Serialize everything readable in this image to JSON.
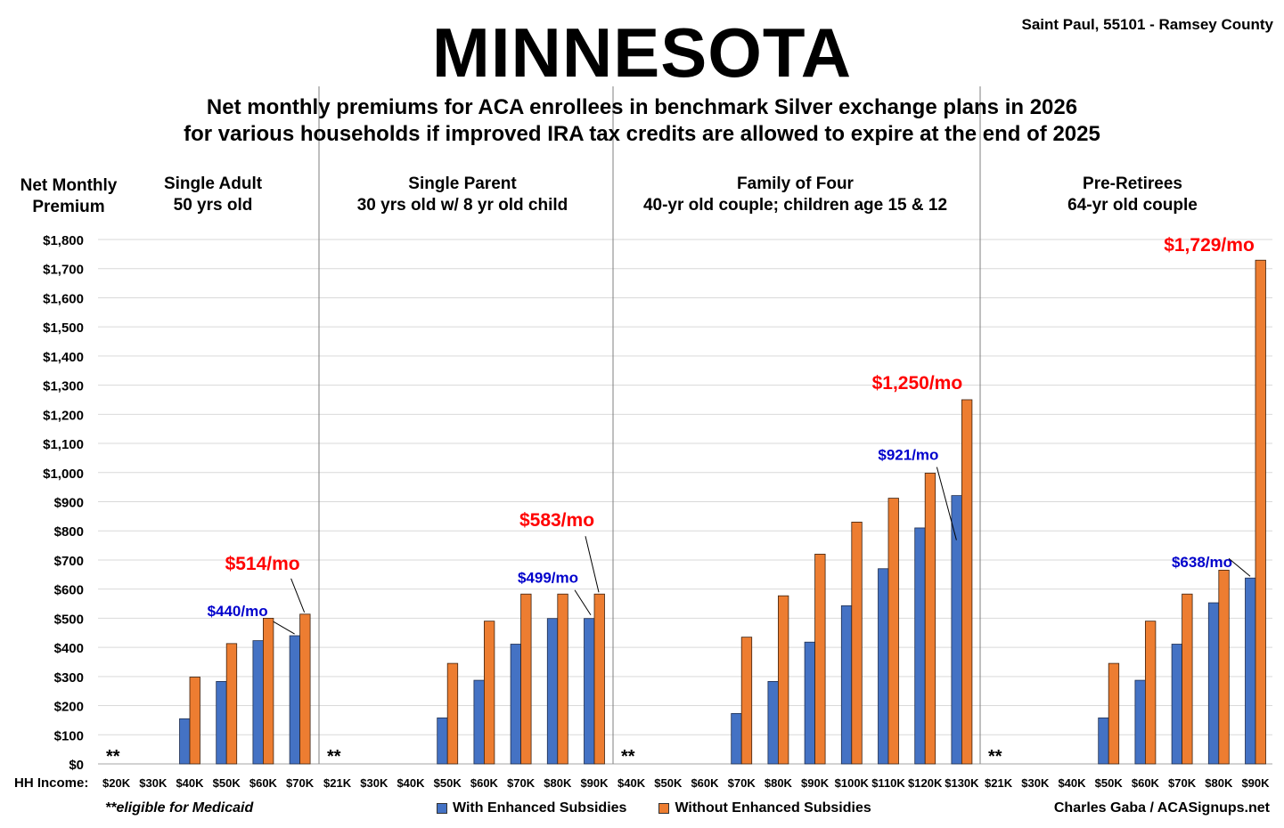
{
  "title": "MINNESOTA",
  "location": "Saint Paul, 55101 - Ramsey County",
  "subtitle_lines": [
    "Net monthly premiums for ACA enrollees in benchmark Silver exchange plans in 2026",
    "for various households if improved IRA tax credits are allowed to expire at the end of 2025"
  ],
  "ylabel_lines": [
    "Net Monthly",
    "Premium"
  ],
  "xaxis_label": "HH Income:",
  "footnote": "**eligible for Medicaid",
  "credit": "Charles Gaba / ACASignups.net",
  "colors": {
    "with": "#4472C4",
    "without": "#ED7D31",
    "blue_label": "#0000CC",
    "red_label": "#FF0000"
  },
  "chart_data": {
    "type": "bar",
    "ylim": [
      0,
      1800
    ],
    "yticks": [
      "$0",
      "$100",
      "$200",
      "$300",
      "$400",
      "$500",
      "$600",
      "$700",
      "$800",
      "$900",
      "$1,000",
      "$1,100",
      "$1,200",
      "$1,300",
      "$1,400",
      "$1,500",
      "$1,600",
      "$1,700",
      "$1,800"
    ],
    "legend": [
      "With Enhanced Subsidies",
      "Without Enhanced Subsidies"
    ],
    "legend_position": "bottom",
    "medicaid_marker": "**",
    "groups": [
      {
        "title": [
          "Single Adult",
          "50 yrs old"
        ],
        "categories": [
          "$20K",
          "$30K",
          "$40K",
          "$50K",
          "$60K",
          "$70K"
        ],
        "with": [
          null,
          null,
          155,
          283,
          423,
          440
        ],
        "without": [
          null,
          null,
          298,
          413,
          500,
          514
        ],
        "label_with": "$440/mo",
        "label_without": "$514/mo"
      },
      {
        "title": [
          "Single Parent",
          "30 yrs old w/ 8 yr old child"
        ],
        "categories": [
          "$21K",
          "$30K",
          "$40K",
          "$50K",
          "$60K",
          "$70K",
          "$80K",
          "$90K"
        ],
        "with": [
          null,
          null,
          null,
          158,
          287,
          411,
          499,
          499
        ],
        "without": [
          null,
          null,
          null,
          345,
          490,
          583,
          583,
          583
        ],
        "label_with": "$499/mo",
        "label_without": "$583/mo"
      },
      {
        "title": [
          "Family of Four",
          "40-yr old couple; children age 15 & 12"
        ],
        "categories": [
          "$40K",
          "$50K",
          "$60K",
          "$70K",
          "$80K",
          "$90K",
          "$100K",
          "$110K",
          "$120K",
          "$130K"
        ],
        "with": [
          null,
          null,
          null,
          173,
          283,
          418,
          543,
          670,
          810,
          921
        ],
        "without": [
          null,
          null,
          null,
          435,
          577,
          720,
          830,
          912,
          998,
          1250
        ],
        "label_with": "$921/mo",
        "label_without": "$1,250/mo"
      },
      {
        "title": [
          "Pre-Retirees",
          "64-yr old couple"
        ],
        "categories": [
          "$21K",
          "$30K",
          "$40K",
          "$50K",
          "$60K",
          "$70K",
          "$80K",
          "$90K"
        ],
        "with": [
          null,
          null,
          null,
          158,
          287,
          411,
          553,
          638
        ],
        "without": [
          null,
          null,
          null,
          345,
          490,
          583,
          665,
          1729
        ],
        "label_with": "$638/mo",
        "label_without": "$1,729/mo"
      }
    ]
  }
}
